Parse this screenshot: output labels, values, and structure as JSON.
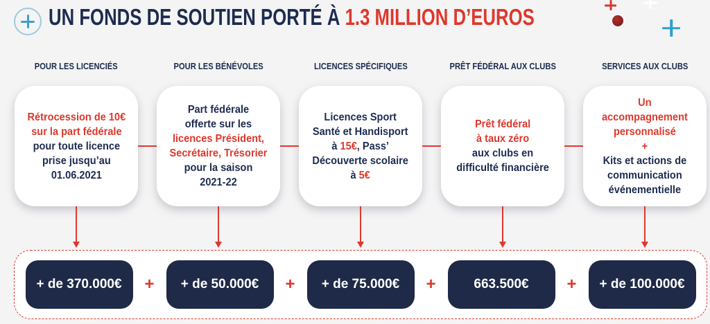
{
  "title": {
    "prefix": "UN FONDS DE SOUTIEN PORTÉ À ",
    "highlight": "1.3 MILLION D’EUROS"
  },
  "decorations": {
    "top_left_icon": "circle-plus-icon",
    "top_right_icons": [
      "red-plus-icon",
      "dark-red-dot",
      "white-plus-icon",
      "blue-plus-icon"
    ]
  },
  "columns": [
    {
      "header": "POUR LES LICENCIÉS",
      "lines": [
        [
          {
            "t": "Rétrocession de 10€",
            "c": "red"
          }
        ],
        [
          {
            "t": "sur la part fédérale",
            "c": "red"
          }
        ],
        [
          {
            "t": "pour toute licence",
            "c": "navy"
          }
        ],
        [
          {
            "t": "prise jusqu’au",
            "c": "navy"
          }
        ],
        [
          {
            "t": "01.06.2021",
            "c": "navy"
          }
        ]
      ],
      "total": "+ de 370.000€"
    },
    {
      "header": "POUR LES BÉNÉVOLES",
      "lines": [
        [
          {
            "t": "Part fédérale",
            "c": "navy"
          }
        ],
        [
          {
            "t": "offerte sur les",
            "c": "navy"
          }
        ],
        [
          {
            "t": "licences Président,",
            "c": "red"
          }
        ],
        [
          {
            "t": "Secrétaire, Trésorier",
            "c": "red"
          }
        ],
        [
          {
            "t": "pour la saison",
            "c": "navy"
          }
        ],
        [
          {
            "t": "2021-22",
            "c": "navy"
          }
        ]
      ],
      "total": "+ de 50.000€"
    },
    {
      "header": "LICENCES SPÉCIFIQUES",
      "lines": [
        [
          {
            "t": "Licences Sport",
            "c": "navy"
          }
        ],
        [
          {
            "t": "Santé et Handisport",
            "c": "navy"
          }
        ],
        [
          {
            "t": "à ",
            "c": "navy"
          },
          {
            "t": "15€",
            "c": "red"
          },
          {
            "t": ", Pass’",
            "c": "navy"
          }
        ],
        [
          {
            "t": "Découverte scolaire",
            "c": "navy"
          }
        ],
        [
          {
            "t": "à ",
            "c": "navy"
          },
          {
            "t": "5€",
            "c": "red"
          }
        ]
      ],
      "total": "+ de 75.000€"
    },
    {
      "header": "PRÊT FÉDÉRAL AUX CLUBS",
      "lines": [
        [
          {
            "t": "Prêt fédéral",
            "c": "red"
          }
        ],
        [
          {
            "t": "à taux zéro",
            "c": "red"
          }
        ],
        [
          {
            "t": "aux clubs en",
            "c": "navy"
          }
        ],
        [
          {
            "t": "difficulté financière",
            "c": "navy"
          }
        ]
      ],
      "total": "663.500€"
    },
    {
      "header": "SERVICES AUX CLUBS",
      "lines": [
        [
          {
            "t": "Un",
            "c": "red"
          }
        ],
        [
          {
            "t": "accompagnement",
            "c": "red"
          }
        ],
        [
          {
            "t": "personnalisé",
            "c": "red"
          }
        ],
        [
          {
            "t": "+",
            "c": "red"
          }
        ],
        [
          {
            "t": "Kits et actions de",
            "c": "navy"
          }
        ],
        [
          {
            "t": "communication",
            "c": "navy"
          }
        ],
        [
          {
            "t": "événementielle",
            "c": "navy"
          }
        ]
      ],
      "total": "+ de 100.000€"
    }
  ],
  "totals_separator": "+",
  "colors": {
    "navy": "#1d2b50",
    "red": "#dd382c",
    "pill_bg": "#1e2a47",
    "blue_accent": "#2e9fd3",
    "dot_red": "#8e2124",
    "background": "#f4f4f5"
  }
}
